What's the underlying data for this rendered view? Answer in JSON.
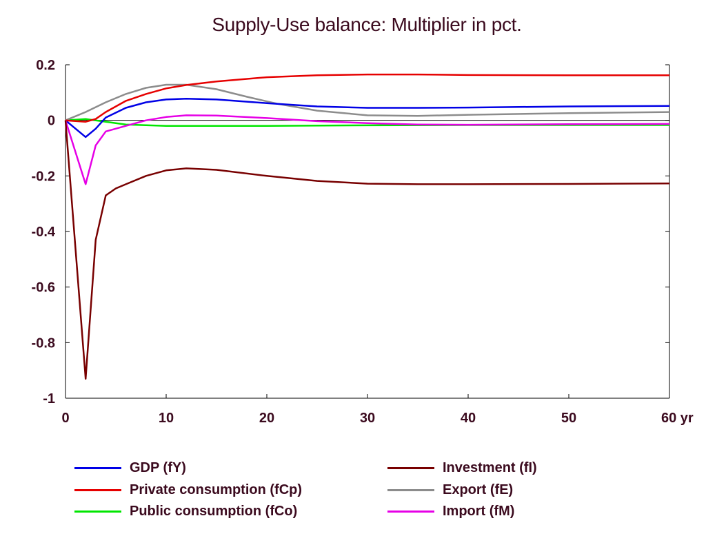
{
  "chart_data": {
    "type": "line",
    "title": "Supply-Use balance: Multiplier in pct.",
    "xlabel": "",
    "ylabel": "",
    "x_unit_label": "yr",
    "xlim": [
      0,
      60
    ],
    "ylim": [
      -1,
      0.2
    ],
    "xticks": [
      0,
      10,
      20,
      30,
      40,
      50,
      60
    ],
    "xtick_labels": [
      "0",
      "10",
      "20",
      "30",
      "40",
      "50",
      "60 yr"
    ],
    "yticks": [
      0.2,
      0,
      -0.2,
      -0.4,
      -0.6,
      -0.8,
      -1
    ],
    "ytick_labels": [
      "0.2",
      "0",
      "-0.2",
      "-0.4",
      "-0.6",
      "-0.8",
      "-1"
    ],
    "grid": false,
    "legend_position": "bottom",
    "series": [
      {
        "name": "GDP (fY)",
        "color": "#0000e6",
        "x": [
          0,
          2,
          3,
          4,
          6,
          8,
          10,
          12,
          15,
          20,
          25,
          30,
          35,
          40,
          50,
          60
        ],
        "y": [
          0,
          -0.06,
          -0.03,
          0.01,
          0.045,
          0.065,
          0.075,
          0.078,
          0.075,
          0.062,
          0.05,
          0.045,
          0.045,
          0.046,
          0.05,
          0.052
        ]
      },
      {
        "name": "Private consumption (fCp)",
        "color": "#e60000",
        "x": [
          0,
          2,
          3,
          4,
          6,
          8,
          10,
          12,
          15,
          20,
          25,
          30,
          35,
          40,
          50,
          60
        ],
        "y": [
          0,
          -0.005,
          0.005,
          0.03,
          0.07,
          0.095,
          0.115,
          0.127,
          0.14,
          0.155,
          0.162,
          0.165,
          0.165,
          0.163,
          0.162,
          0.162
        ]
      },
      {
        "name": "Public consumption (fCo)",
        "color": "#00e600",
        "x": [
          0,
          2,
          4,
          6,
          10,
          15,
          20,
          30,
          40,
          50,
          60
        ],
        "y": [
          0,
          0.005,
          -0.005,
          -0.015,
          -0.02,
          -0.02,
          -0.02,
          -0.018,
          -0.017,
          -0.017,
          -0.017
        ]
      },
      {
        "name": "Investment (fI)",
        "color": "#780000",
        "x": [
          0,
          2,
          3,
          4,
          5,
          6,
          8,
          10,
          12,
          15,
          20,
          25,
          30,
          35,
          40,
          50,
          60
        ],
        "y": [
          0,
          -0.93,
          -0.43,
          -0.27,
          -0.245,
          -0.23,
          -0.2,
          -0.18,
          -0.173,
          -0.178,
          -0.2,
          -0.218,
          -0.228,
          -0.23,
          -0.23,
          -0.229,
          -0.227
        ]
      },
      {
        "name": "Export (fE)",
        "color": "#8c8c8c",
        "x": [
          0,
          2,
          4,
          6,
          8,
          10,
          12,
          15,
          18,
          21,
          25,
          30,
          35,
          40,
          50,
          60
        ],
        "y": [
          0,
          0.03,
          0.065,
          0.095,
          0.117,
          0.128,
          0.128,
          0.112,
          0.085,
          0.06,
          0.035,
          0.018,
          0.016,
          0.02,
          0.026,
          0.03
        ]
      },
      {
        "name": "Import (fM)",
        "color": "#e600e6",
        "x": [
          0,
          2,
          3,
          4,
          6,
          8,
          10,
          12,
          15,
          20,
          25,
          30,
          35,
          40,
          50,
          60
        ],
        "y": [
          0,
          -0.23,
          -0.09,
          -0.04,
          -0.02,
          0.0,
          0.012,
          0.018,
          0.017,
          0.008,
          -0.003,
          -0.01,
          -0.015,
          -0.016,
          -0.014,
          -0.013
        ]
      }
    ]
  }
}
